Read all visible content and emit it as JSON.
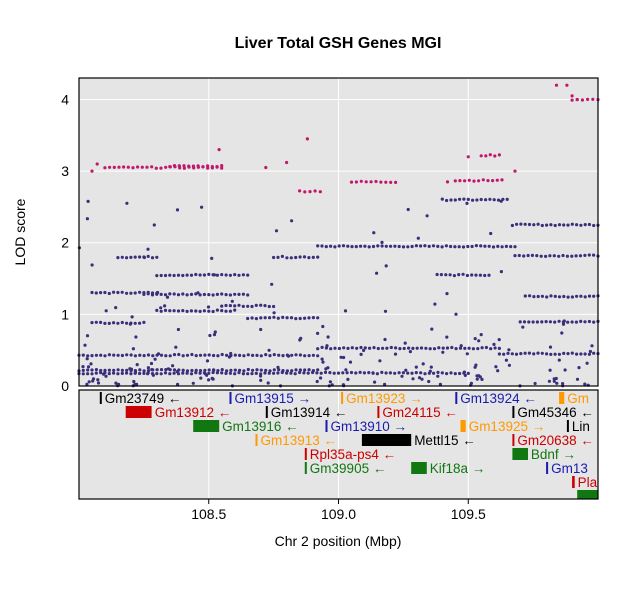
{
  "chart_data": {
    "type": "scatter",
    "title": "Liver Total GSH Genes MGI",
    "xlabel": "Chr 2 position (Mbp)",
    "ylabel": "LOD score",
    "xlim": [
      108.0,
      110.0
    ],
    "ylim": [
      0,
      4.3
    ],
    "xticks": [
      "108.5",
      "109.0",
      "109.5"
    ],
    "yticks": [
      "0",
      "1",
      "2",
      "3",
      "4"
    ],
    "grid": true,
    "colors": {
      "snp": "#3b2e7a",
      "highlight": "#c2186c",
      "panel_bg": "#e5e5e5"
    },
    "snp_segments": [
      {
        "x0": 108.0,
        "x1": 108.92,
        "y": 0.43
      },
      {
        "x0": 108.0,
        "x1": 108.92,
        "y": 0.22
      },
      {
        "x0": 108.0,
        "x1": 109.5,
        "y": 0.18
      },
      {
        "x0": 108.92,
        "x1": 109.62,
        "y": 0.53
      },
      {
        "x0": 109.62,
        "x1": 110.0,
        "y": 0.45
      },
      {
        "x0": 108.92,
        "x1": 109.68,
        "y": 1.95
      },
      {
        "x0": 109.68,
        "x1": 110.0,
        "y": 1.82
      },
      {
        "x0": 109.67,
        "x1": 110.0,
        "y": 2.25
      },
      {
        "x0": 108.15,
        "x1": 108.3,
        "y": 1.8
      },
      {
        "x0": 108.3,
        "x1": 108.65,
        "y": 1.55
      },
      {
        "x0": 108.25,
        "x1": 108.65,
        "y": 1.28
      },
      {
        "x0": 108.05,
        "x1": 108.3,
        "y": 1.3
      },
      {
        "x0": 108.3,
        "x1": 108.6,
        "y": 1.05
      },
      {
        "x0": 108.55,
        "x1": 108.75,
        "y": 1.12
      },
      {
        "x0": 108.75,
        "x1": 108.92,
        "y": 1.8
      },
      {
        "x0": 108.65,
        "x1": 108.92,
        "y": 0.95
      },
      {
        "x0": 108.05,
        "x1": 108.25,
        "y": 0.88
      },
      {
        "x0": 109.4,
        "x1": 109.65,
        "y": 2.6
      },
      {
        "x0": 109.38,
        "x1": 109.58,
        "y": 1.55
      },
      {
        "x0": 109.7,
        "x1": 110.0,
        "y": 0.9
      },
      {
        "x0": 109.72,
        "x1": 110.0,
        "y": 1.25
      }
    ],
    "highlight_segments": [
      {
        "x0": 108.1,
        "x1": 108.55,
        "y": 3.05
      },
      {
        "x0": 108.35,
        "x1": 108.55,
        "y": 3.07
      },
      {
        "x0": 108.85,
        "x1": 108.93,
        "y": 2.72
      },
      {
        "x0": 109.05,
        "x1": 109.22,
        "y": 2.85
      },
      {
        "x0": 109.45,
        "x1": 109.63,
        "y": 2.87
      },
      {
        "x0": 109.55,
        "x1": 109.62,
        "y": 3.22
      },
      {
        "x0": 109.9,
        "x1": 110.0,
        "y": 4.0
      }
    ],
    "highlight_points": [
      {
        "x": 108.05,
        "y": 3.0
      },
      {
        "x": 108.07,
        "y": 3.1
      },
      {
        "x": 108.54,
        "y": 3.3
      },
      {
        "x": 108.72,
        "y": 3.05
      },
      {
        "x": 108.8,
        "y": 3.12
      },
      {
        "x": 108.88,
        "y": 3.45
      },
      {
        "x": 109.42,
        "y": 2.85
      },
      {
        "x": 109.5,
        "y": 3.2
      },
      {
        "x": 109.68,
        "y": 3.0
      },
      {
        "x": 109.84,
        "y": 4.2
      },
      {
        "x": 109.88,
        "y": 4.2
      },
      {
        "x": 109.9,
        "y": 4.05
      },
      {
        "x": 109.92,
        "y": 4.0
      }
    ],
    "genes": [
      {
        "name": "Gm23749",
        "arrow": "←",
        "start": 108.08,
        "end": 108.08,
        "row": 0,
        "color": "#000000"
      },
      {
        "name": "Gm13915",
        "arrow": "→",
        "start": 108.58,
        "end": 108.58,
        "row": 0,
        "color": "#1a1ab0"
      },
      {
        "name": "Gm13923",
        "arrow": "→",
        "start": 109.01,
        "end": 109.01,
        "row": 0,
        "color": "#ff9900"
      },
      {
        "name": "Gm13924",
        "arrow": "←",
        "start": 109.45,
        "end": 109.45,
        "row": 0,
        "color": "#1a1ab0"
      },
      {
        "name": "Gm",
        "arrow": "",
        "start": 109.85,
        "end": 109.87,
        "row": 0,
        "color": "#ff9900"
      },
      {
        "name": "Gm13912",
        "arrow": "←",
        "start": 108.18,
        "end": 108.28,
        "row": 1,
        "color": "#cc0000"
      },
      {
        "name": "Gm13914",
        "arrow": "←",
        "start": 108.72,
        "end": 108.72,
        "row": 1,
        "color": "#000000"
      },
      {
        "name": "Gm24115",
        "arrow": "←",
        "start": 109.15,
        "end": 109.15,
        "row": 1,
        "color": "#cc0000"
      },
      {
        "name": "Gm45346",
        "arrow": "←",
        "start": 109.67,
        "end": 109.67,
        "row": 1,
        "color": "#000000"
      },
      {
        "name": "Gm13916",
        "arrow": "←",
        "start": 108.44,
        "end": 108.54,
        "row": 2,
        "color": "#117711"
      },
      {
        "name": "Gm13910",
        "arrow": "→",
        "start": 108.95,
        "end": 108.95,
        "row": 2,
        "color": "#1a1ab0"
      },
      {
        "name": "Gm13925",
        "arrow": "→",
        "start": 109.47,
        "end": 109.49,
        "row": 2,
        "color": "#ff9900"
      },
      {
        "name": "Lin",
        "arrow": "",
        "start": 109.88,
        "end": 109.88,
        "row": 2,
        "color": "#000000"
      },
      {
        "name": "Gm13913",
        "arrow": "←",
        "start": 108.68,
        "end": 108.68,
        "row": 3,
        "color": "#ff9900"
      },
      {
        "name": "Mettl15",
        "arrow": "←",
        "start": 109.09,
        "end": 109.28,
        "row": 3,
        "color": "#000000"
      },
      {
        "name": "Gm20638",
        "arrow": "←",
        "start": 109.67,
        "end": 109.67,
        "row": 3,
        "color": "#cc0000"
      },
      {
        "name": "Rpl35a-ps4",
        "arrow": "←",
        "start": 108.87,
        "end": 108.87,
        "row": 4,
        "color": "#cc0000"
      },
      {
        "name": "Bdnf",
        "arrow": "→",
        "start": 109.67,
        "end": 109.73,
        "row": 4,
        "color": "#117711"
      },
      {
        "name": "Gm39905",
        "arrow": "←",
        "start": 108.87,
        "end": 108.87,
        "row": 5,
        "color": "#117711"
      },
      {
        "name": "Kif18a",
        "arrow": "→",
        "start": 109.28,
        "end": 109.34,
        "row": 5,
        "color": "#117711"
      },
      {
        "name": "Gm13",
        "arrow": "",
        "start": 109.8,
        "end": 109.8,
        "row": 5,
        "color": "#1a1ab0"
      },
      {
        "name": "Pla",
        "arrow": "",
        "start": 109.9,
        "end": 109.91,
        "row": 6,
        "color": "#cc0000"
      },
      {
        "name": "",
        "arrow": "",
        "start": 109.92,
        "end": 110.0,
        "row": 7,
        "color": "#117711"
      }
    ]
  }
}
